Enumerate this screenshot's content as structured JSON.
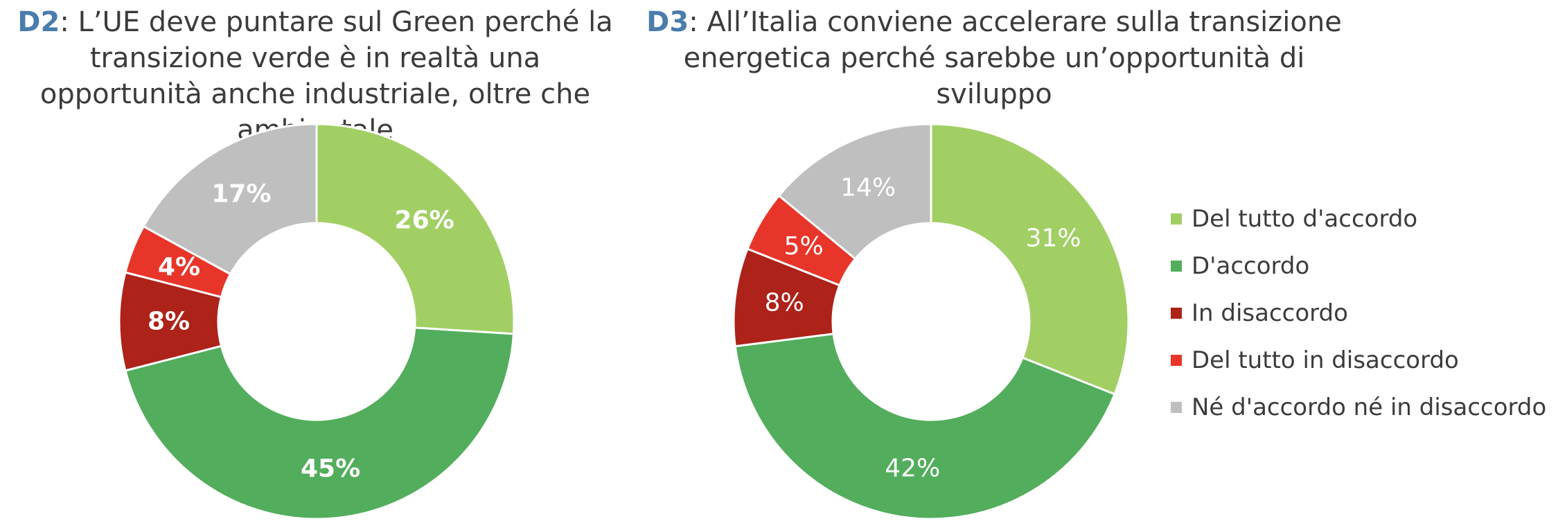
{
  "chart_data": [
    {
      "type": "pie",
      "title_id": "D2",
      "title_text": ": L’UE deve puntare sul Green perché la transizione verde è in realtà una opportunità anche industriale, oltre che ambientale",
      "categories": [
        "Del tutto d'accordo",
        "D'accordo",
        "In disaccordo",
        "Del tutto in disaccordo",
        "Né d'accordo né in disaccordo"
      ],
      "values": [
        26,
        45,
        8,
        4,
        17
      ],
      "labels": [
        "26%",
        "45%",
        "8%",
        "4%",
        "17%"
      ],
      "label_bold": true
    },
    {
      "type": "pie",
      "title_id": "D3",
      "title_text": ": All’Italia conviene accelerare sulla transizione energetica perché sarebbe un’opportunità di sviluppo",
      "categories": [
        "Del tutto d'accordo",
        "D'accordo",
        "In disaccordo",
        "Del tutto in disaccordo",
        "Né d'accordo né in disaccordo"
      ],
      "values": [
        31,
        42,
        8,
        5,
        14
      ],
      "labels": [
        "31%",
        "42%",
        "8%",
        "5%",
        "14%"
      ],
      "label_bold": false
    }
  ],
  "legend": {
    "placement": "right",
    "items": [
      {
        "label": "Del tutto d'accordo",
        "color": "#a1cf64"
      },
      {
        "label": "D'accordo",
        "color": "#52ad5c"
      },
      {
        "label": "In disaccordo",
        "color": "#ad2219"
      },
      {
        "label": "Del tutto in disaccordo",
        "color": "#e8352a"
      },
      {
        "label": "Né d'accordo né in disaccordo",
        "color": "#bfbfbf"
      }
    ]
  },
  "colors": [
    "#a1cf64",
    "#52ad5c",
    "#ad2219",
    "#e8352a",
    "#bfbfbf"
  ]
}
